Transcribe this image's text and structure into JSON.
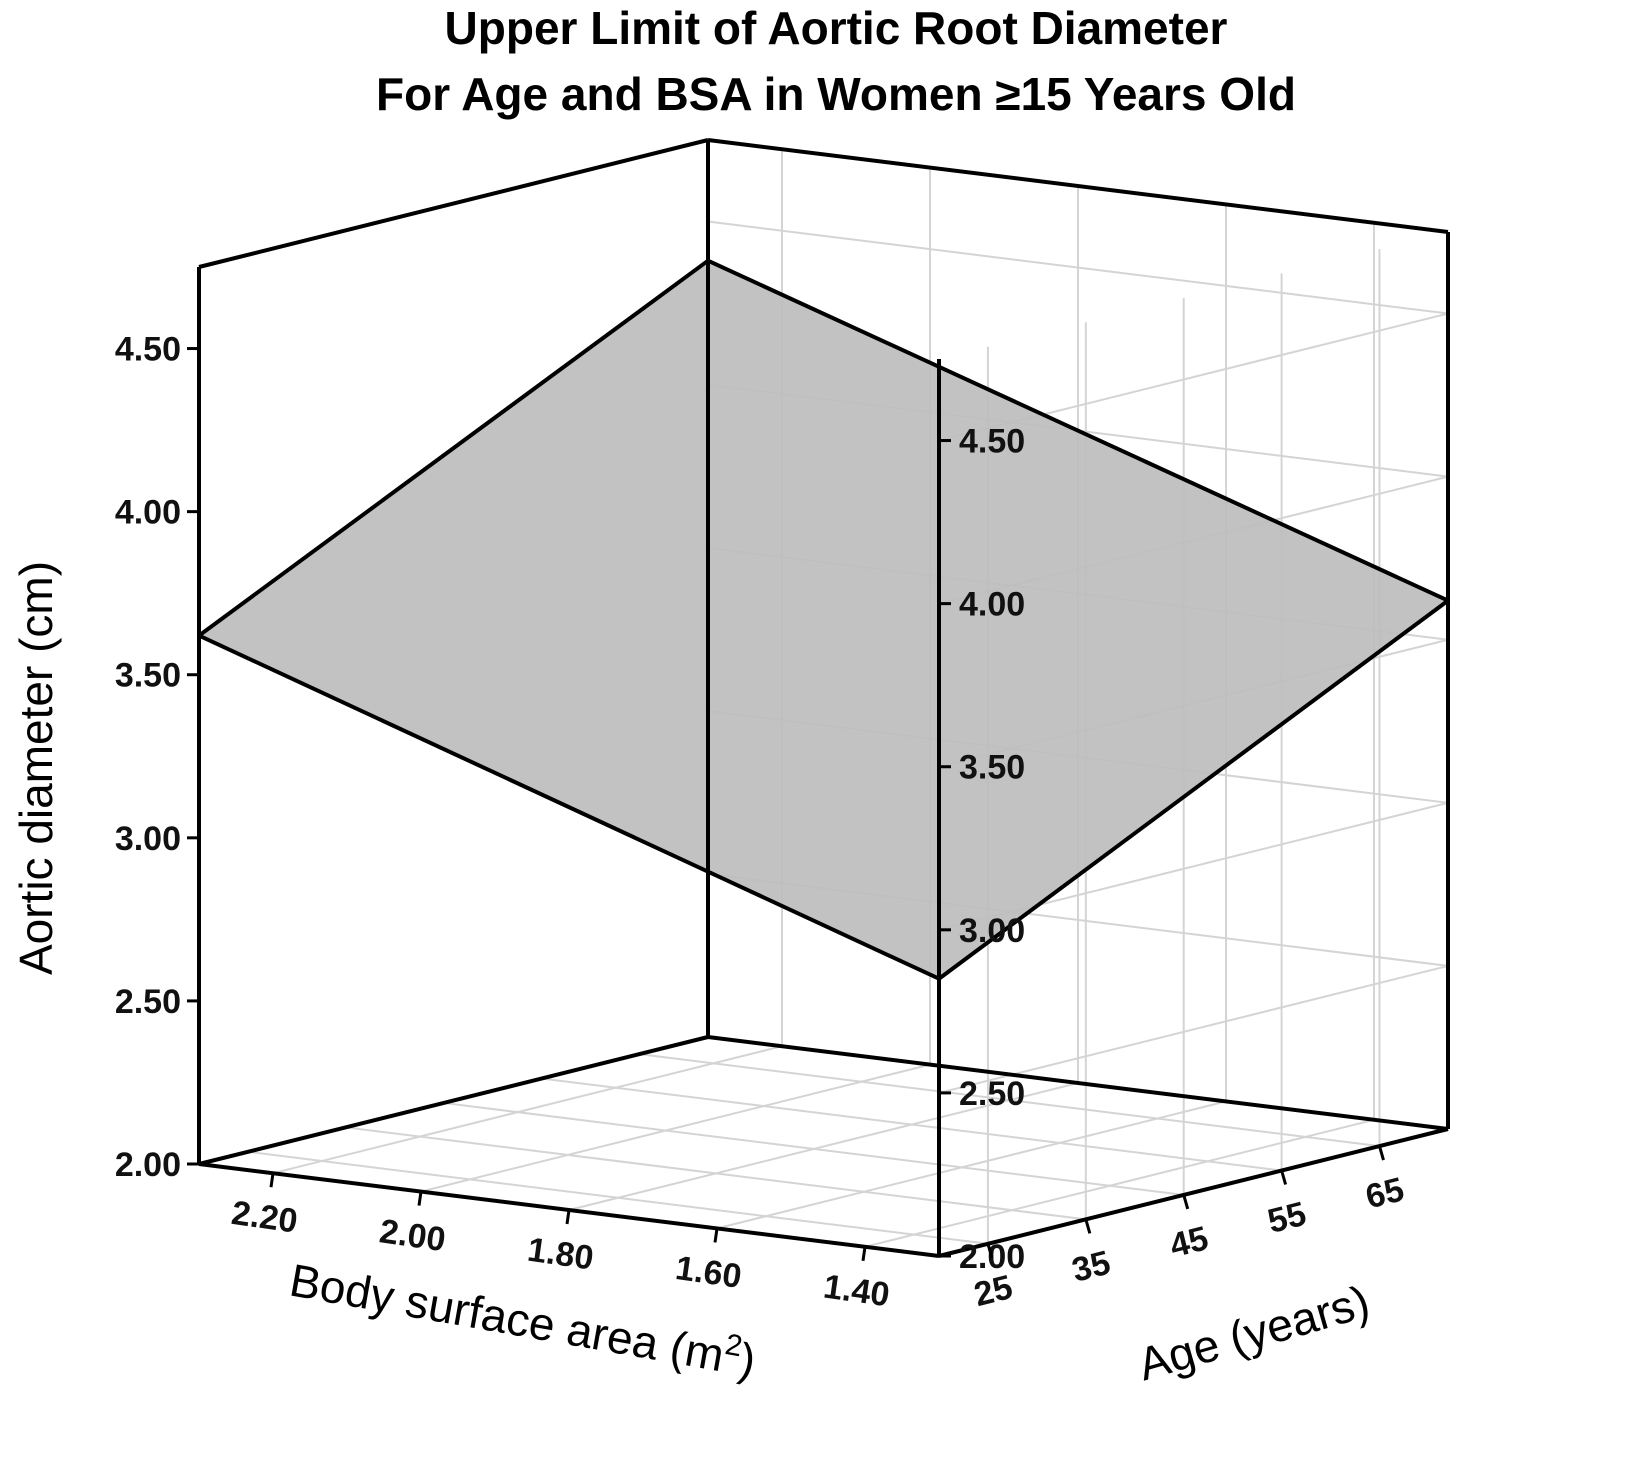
{
  "chart_data": {
    "type": "surface3d",
    "title": "Upper Limit of Aortic Root Diameter",
    "subtitle": "For Age and BSA in Women ≥15 Years Old",
    "zlabel": "Aortic diameter (cm)",
    "bsa_label_text": "Body surface area (m",
    "bsa_label_sup": "2",
    "bsa_label_close": ")",
    "age_label": "Age (years)",
    "z_ticks": [
      "2.00",
      "2.50",
      "3.00",
      "3.50",
      "4.00",
      "4.50"
    ],
    "bsa_ticks": [
      "2.20",
      "2.00",
      "1.80",
      "1.60",
      "1.40"
    ],
    "age_ticks": [
      "25",
      "35",
      "45",
      "55",
      "65"
    ],
    "z_range": [
      2.0,
      4.75
    ],
    "bsa_range": [
      2.3,
      1.3
    ],
    "age_range": [
      20,
      72
    ],
    "surface_corners": [
      {
        "bsa": 2.3,
        "age": 20,
        "z": 3.62
      },
      {
        "bsa": 1.3,
        "age": 20,
        "z": 2.85
      },
      {
        "bsa": 1.3,
        "age": 72,
        "z": 3.62
      },
      {
        "bsa": 2.3,
        "age": 72,
        "z": 4.38
      }
    ],
    "grid": true
  }
}
